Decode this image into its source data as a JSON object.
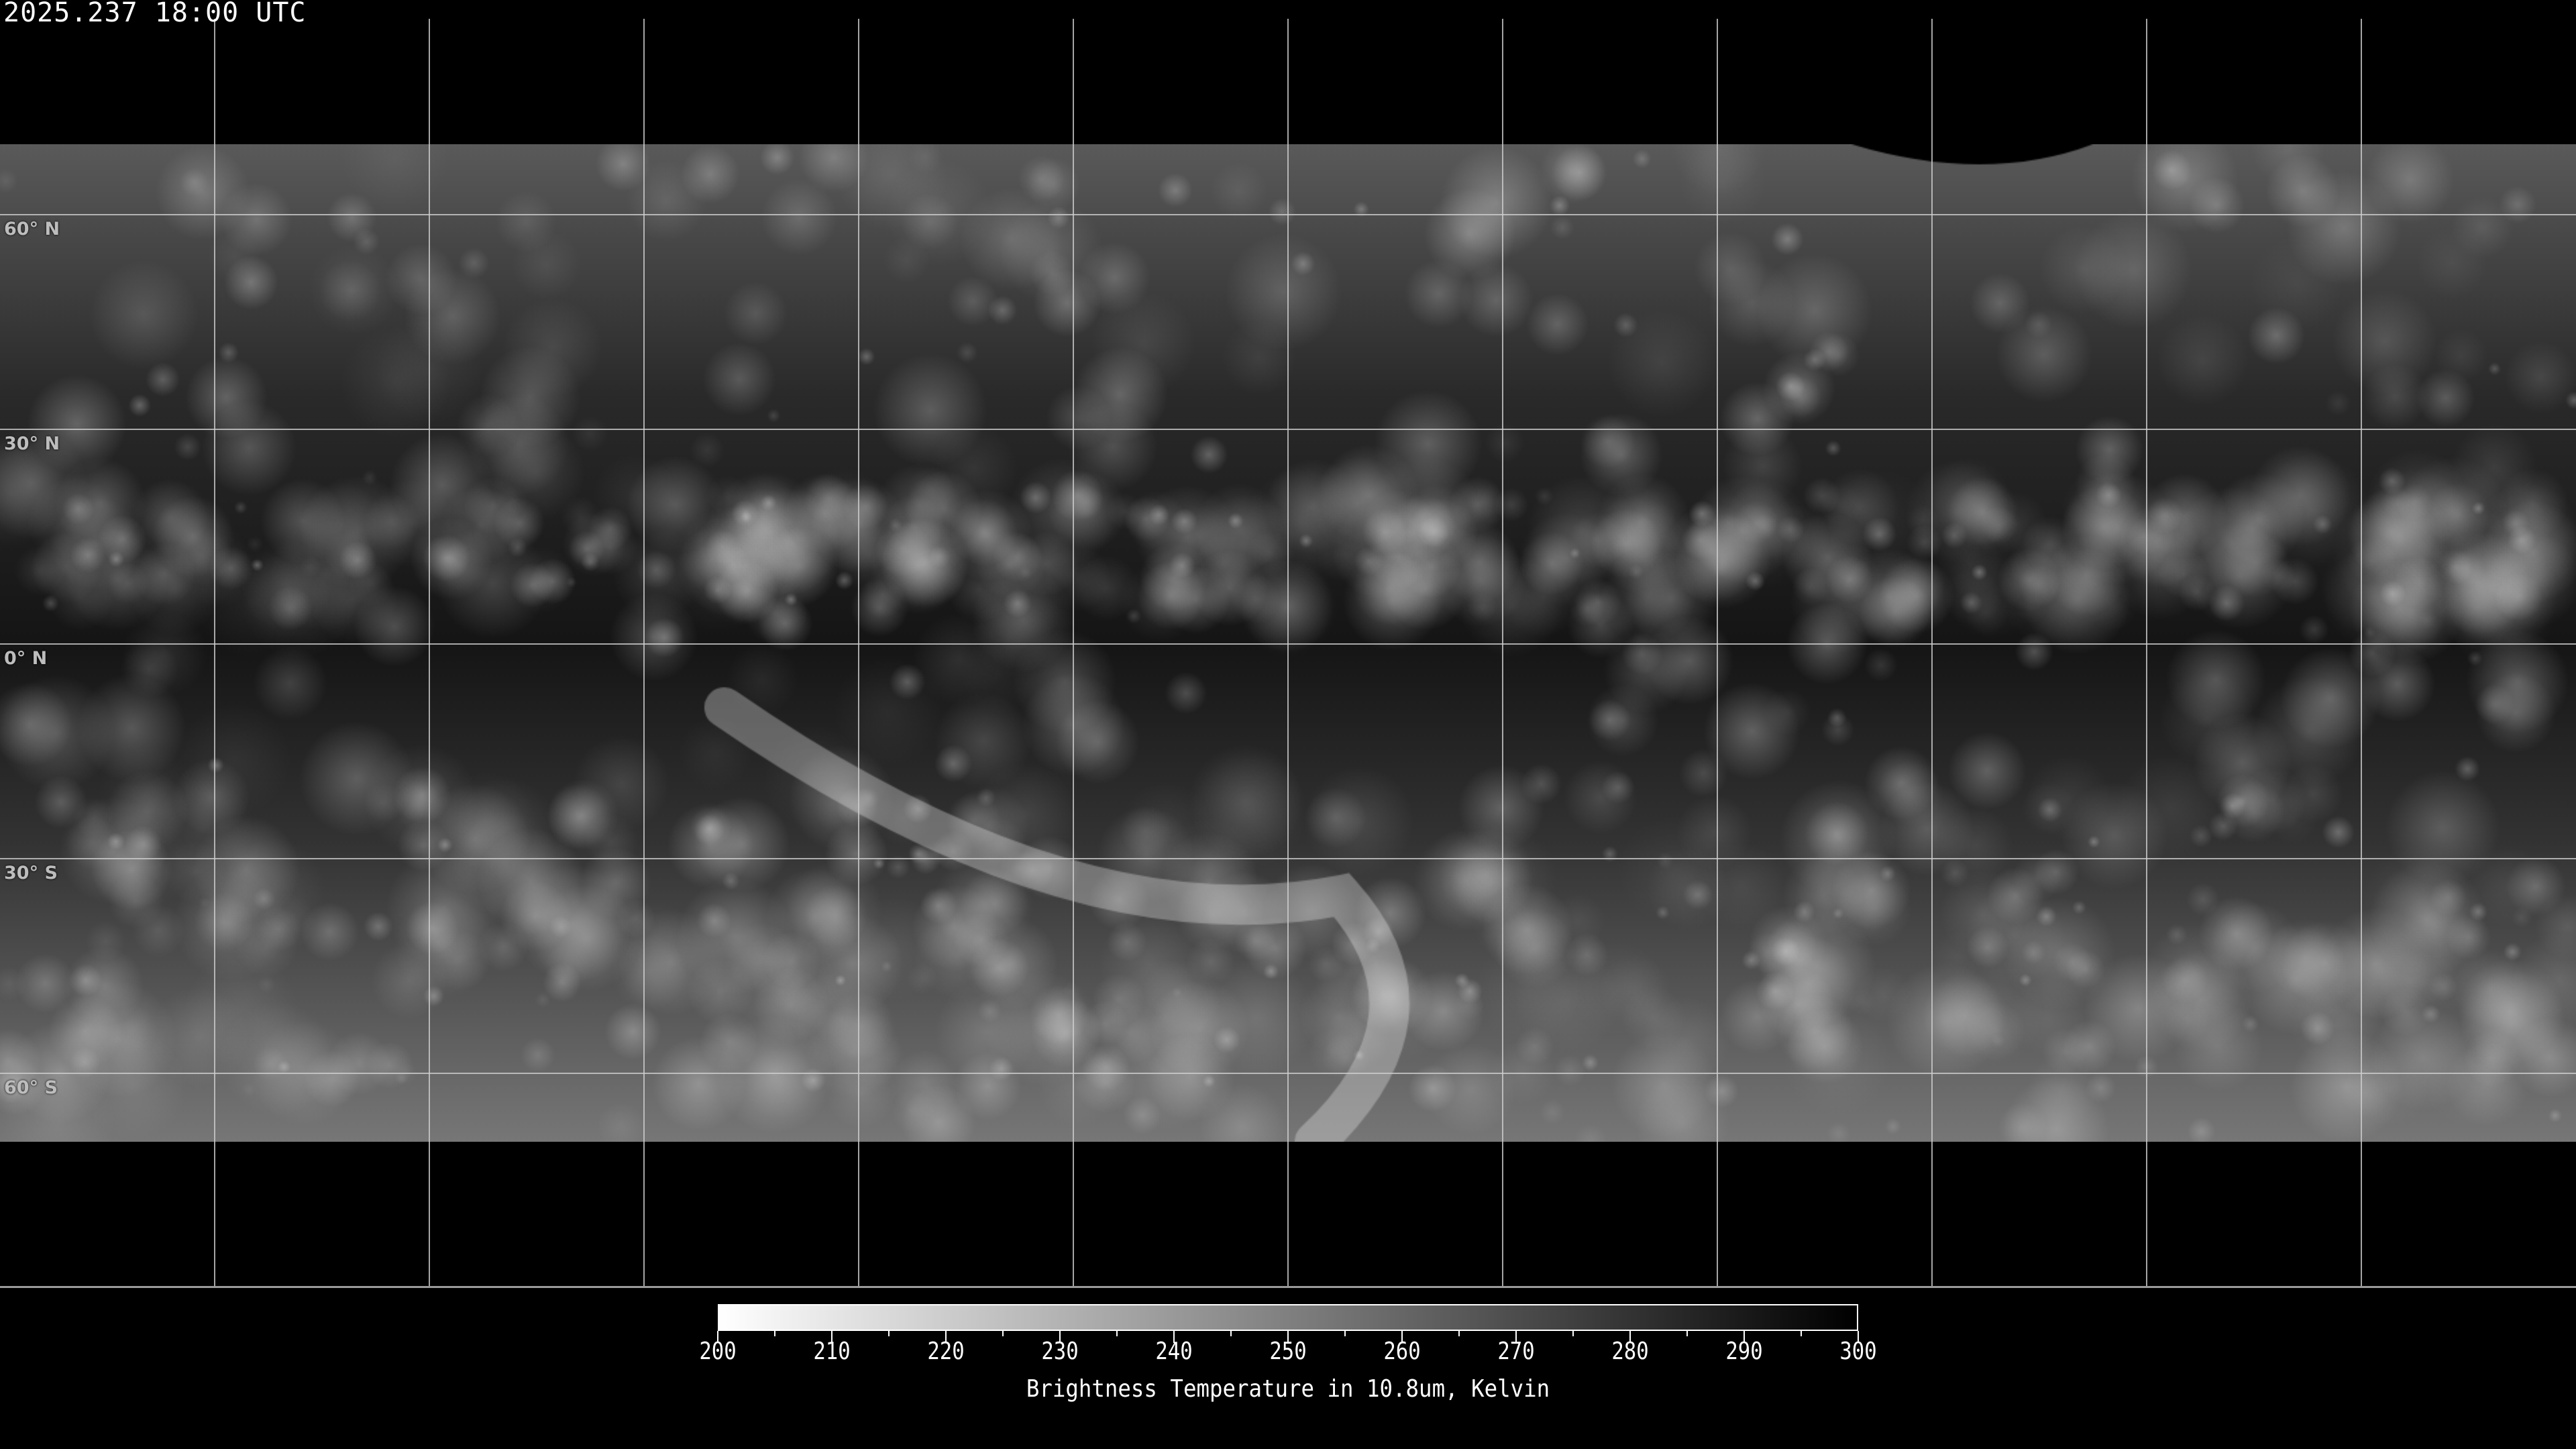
{
  "header": {
    "timestamp": "2025.237 18:00 UTC"
  },
  "map": {
    "projection": "equirectangular",
    "lon_grid_spacing_deg": 30,
    "lat_lines": [
      {
        "lat": 60,
        "label": "60° N"
      },
      {
        "lat": 30,
        "label": "30° N"
      },
      {
        "lat": 0,
        "label": "0° N"
      },
      {
        "lat": -30,
        "label": "30° S"
      },
      {
        "lat": -60,
        "label": "60° S"
      }
    ],
    "colors": {
      "grid": "#cfcfcf",
      "coastline": "#ffffff",
      "background": "#000000"
    }
  },
  "colorbar": {
    "min": 200,
    "max": 300,
    "color_min": "#ffffff",
    "color_max": "#000000",
    "ticks": [
      "200",
      "210",
      "220",
      "230",
      "240",
      "250",
      "260",
      "270",
      "280",
      "290",
      "300"
    ],
    "label": "Brightness Temperature in 10.8um, Kelvin"
  }
}
